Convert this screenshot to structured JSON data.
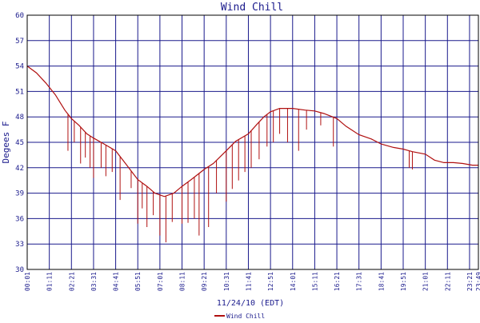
{
  "chart_data": {
    "type": "line",
    "title": "Wind Chill",
    "ylabel": "Degees F",
    "xlabel": "11/24/10 (EDT)",
    "ylim": [
      30,
      60
    ],
    "yticks": [
      30,
      33,
      36,
      39,
      42,
      45,
      48,
      51,
      54,
      57,
      60
    ],
    "xlim": [
      "00:01",
      "23:49"
    ],
    "xticks": [
      "00:01",
      "01:11",
      "02:21",
      "03:31",
      "04:41",
      "05:51",
      "07:01",
      "08:11",
      "09:21",
      "10:31",
      "11:41",
      "12:51",
      "14:01",
      "15:11",
      "16:21",
      "17:31",
      "18:41",
      "19:51",
      "21:01",
      "22:11",
      "23:21",
      "23:49"
    ],
    "grid": true,
    "legend_position": "bottom-center",
    "series": [
      {
        "name": "Wind Chill",
        "color": "#b01010",
        "x": [
          "00:01",
          "00:30",
          "01:00",
          "01:30",
          "02:00",
          "02:21",
          "02:45",
          "03:10",
          "03:31",
          "04:00",
          "04:41",
          "05:10",
          "05:51",
          "06:20",
          "06:45",
          "07:15",
          "07:45",
          "08:11",
          "08:40",
          "09:21",
          "09:50",
          "10:31",
          "11:00",
          "11:41",
          "12:10",
          "12:30",
          "12:51",
          "13:20",
          "14:01",
          "14:40",
          "15:11",
          "15:40",
          "16:21",
          "16:50",
          "17:31",
          "18:10",
          "18:41",
          "19:20",
          "19:51",
          "20:20",
          "21:01",
          "21:30",
          "22:00",
          "22:30",
          "23:00",
          "23:30",
          "23:49"
        ],
        "values": [
          54.0,
          53.2,
          52.0,
          50.6,
          48.8,
          47.8,
          47.0,
          46.0,
          45.5,
          44.9,
          44.0,
          42.6,
          40.6,
          39.8,
          39.0,
          38.6,
          39.0,
          39.8,
          40.6,
          41.8,
          42.5,
          44.0,
          45.1,
          46.0,
          47.2,
          48.0,
          48.6,
          49.0,
          49.0,
          48.8,
          48.7,
          48.4,
          47.8,
          46.9,
          45.9,
          45.4,
          44.8,
          44.4,
          44.2,
          43.9,
          43.6,
          42.9,
          42.6,
          42.6,
          42.5,
          42.3,
          42.3
        ],
        "dips": [
          {
            "x": "02:10",
            "value": 44.0
          },
          {
            "x": "02:30",
            "value": 45.0
          },
          {
            "x": "02:50",
            "value": 42.5
          },
          {
            "x": "03:05",
            "value": 43.2
          },
          {
            "x": "03:20",
            "value": 42.0
          },
          {
            "x": "03:31",
            "value": 40.8
          },
          {
            "x": "03:55",
            "value": 42.0
          },
          {
            "x": "04:10",
            "value": 41.0
          },
          {
            "x": "04:30",
            "value": 41.5
          },
          {
            "x": "04:55",
            "value": 38.2
          },
          {
            "x": "05:30",
            "value": 39.6
          },
          {
            "x": "05:51",
            "value": 35.4
          },
          {
            "x": "06:05",
            "value": 37.2
          },
          {
            "x": "06:20",
            "value": 35.0
          },
          {
            "x": "06:40",
            "value": 36.4
          },
          {
            "x": "07:01",
            "value": 34.0
          },
          {
            "x": "07:20",
            "value": 33.2
          },
          {
            "x": "07:40",
            "value": 35.6
          },
          {
            "x": "08:11",
            "value": 35.4
          },
          {
            "x": "08:30",
            "value": 35.5
          },
          {
            "x": "08:50",
            "value": 36.0
          },
          {
            "x": "09:05",
            "value": 34.0
          },
          {
            "x": "09:35",
            "value": 35.0
          },
          {
            "x": "10:00",
            "value": 39.0
          },
          {
            "x": "10:31",
            "value": 38.0
          },
          {
            "x": "10:50",
            "value": 39.5
          },
          {
            "x": "11:10",
            "value": 40.5
          },
          {
            "x": "11:30",
            "value": 41.5
          },
          {
            "x": "11:50",
            "value": 42.0
          },
          {
            "x": "12:15",
            "value": 43.0
          },
          {
            "x": "12:40",
            "value": 44.5
          },
          {
            "x": "13:00",
            "value": 45.0
          },
          {
            "x": "13:20",
            "value": 46.0
          },
          {
            "x": "13:45",
            "value": 45.0
          },
          {
            "x": "14:20",
            "value": 44.0
          },
          {
            "x": "14:45",
            "value": 46.5
          },
          {
            "x": "15:30",
            "value": 47.0
          },
          {
            "x": "16:10",
            "value": 44.5
          },
          {
            "x": "20:10",
            "value": 42.0
          },
          {
            "x": "20:20",
            "value": 41.8
          }
        ]
      }
    ]
  }
}
